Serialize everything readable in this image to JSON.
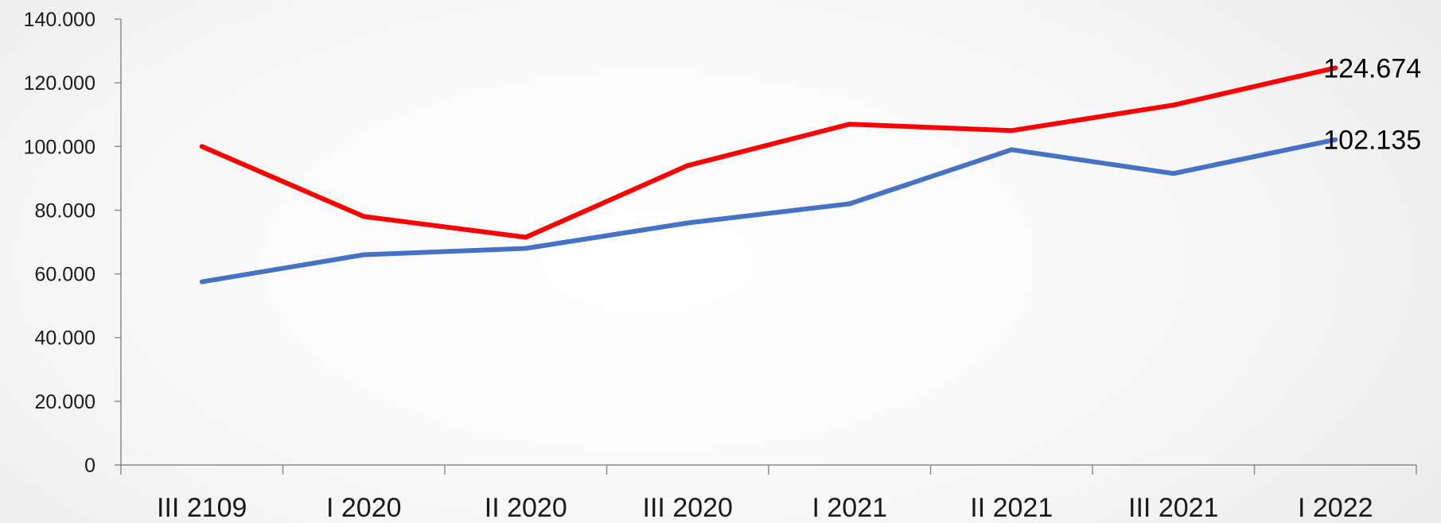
{
  "chart_data": {
    "type": "line",
    "title": "",
    "xlabel": "",
    "ylabel": "",
    "categories": [
      "III 2109",
      "I 2020",
      "II 2020",
      "III 2020",
      "I 2021",
      "II 2021",
      "III 2021",
      "I 2022"
    ],
    "ylim": [
      0,
      140000
    ],
    "yticks": [
      0,
      20000,
      40000,
      60000,
      80000,
      100000,
      120000,
      140000
    ],
    "ytick_labels": [
      "0",
      "20.000",
      "40.000",
      "60.000",
      "80.000",
      "100.000",
      "120.000",
      "140.000"
    ],
    "grid": false,
    "legend": "none",
    "series": [
      {
        "color": "#ff0000",
        "values": [
          100000,
          78000,
          71500,
          94000,
          107000,
          105000,
          113000,
          124674
        ],
        "end_label": "124.674"
      },
      {
        "color": "#4472c4",
        "values": [
          57500,
          66000,
          68000,
          76000,
          82000,
          99000,
          91500,
          102135
        ],
        "end_label": "102.135"
      }
    ]
  }
}
